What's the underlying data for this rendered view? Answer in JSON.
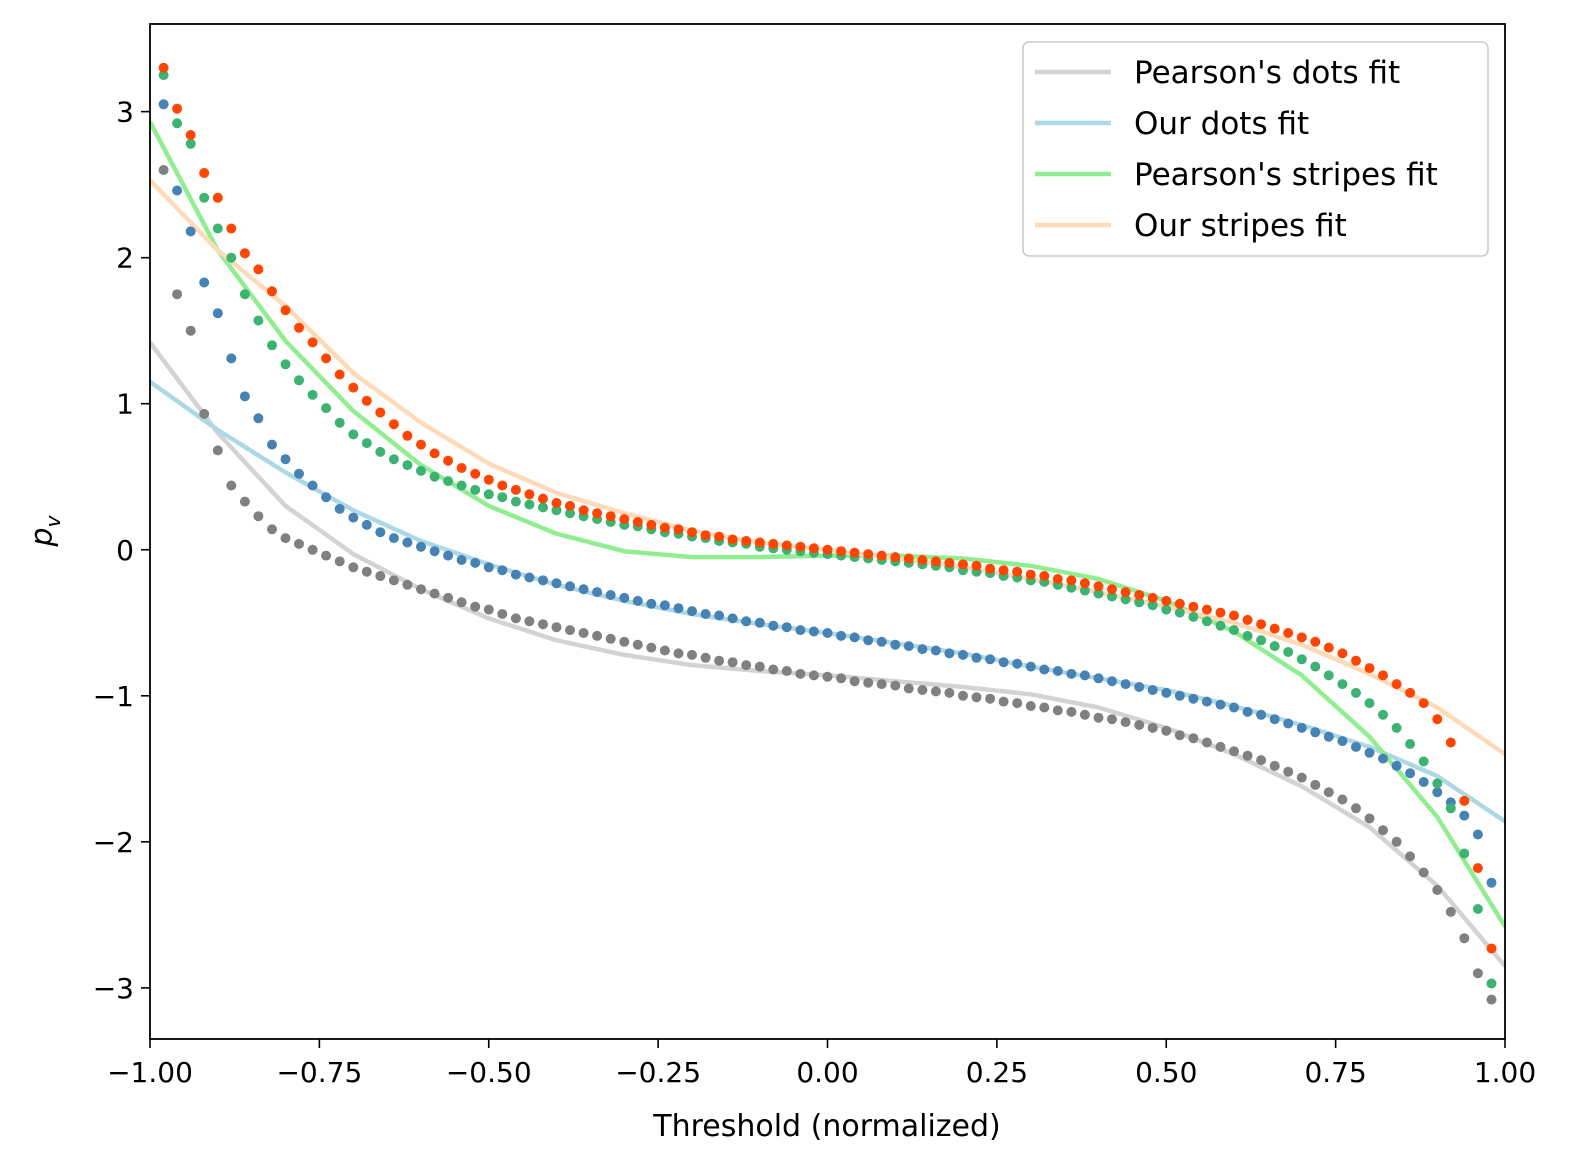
{
  "chart_data": {
    "type": "scatter",
    "xlabel": "Threshold (normalized)",
    "ylabel": "p_v",
    "ylabel_main": "p",
    "ylabel_sub": "v",
    "xlim": [
      -1.0,
      1.0
    ],
    "ylim": [
      -3.35,
      3.6
    ],
    "xticks": [
      -1.0,
      -0.75,
      -0.5,
      -0.25,
      0.0,
      0.25,
      0.5,
      0.75,
      1.0
    ],
    "xtick_labels": [
      "−1.00",
      "−0.75",
      "−0.50",
      "−0.25",
      "0.00",
      "0.25",
      "0.50",
      "0.75",
      "1.00"
    ],
    "yticks": [
      -3,
      -2,
      -1,
      0,
      1,
      2,
      3
    ],
    "ytick_labels": [
      "−3",
      "−2",
      "−1",
      "0",
      "1",
      "2",
      "3"
    ],
    "grid": false,
    "legend_position": "top-right",
    "fit_lines": [
      {
        "name": "Pearson's dots fit",
        "color": "#d3d3d3",
        "x": [
          -1.0,
          -0.9,
          -0.8,
          -0.7,
          -0.6,
          -0.5,
          -0.4,
          -0.3,
          -0.2,
          -0.1,
          0.0,
          0.1,
          0.2,
          0.3,
          0.4,
          0.5,
          0.6,
          0.7,
          0.8,
          0.9,
          1.0
        ],
        "y": [
          1.42,
          0.8,
          0.3,
          -0.03,
          -0.27,
          -0.47,
          -0.62,
          -0.72,
          -0.79,
          -0.83,
          -0.86,
          -0.9,
          -0.94,
          -0.99,
          -1.08,
          -1.22,
          -1.4,
          -1.62,
          -1.9,
          -2.3,
          -2.85
        ]
      },
      {
        "name": "Our dots fit",
        "color": "#add8e6",
        "x": [
          -1.0,
          -0.9,
          -0.8,
          -0.7,
          -0.6,
          -0.5,
          -0.4,
          -0.3,
          -0.2,
          -0.1,
          0.0,
          0.1,
          0.2,
          0.3,
          0.4,
          0.5,
          0.6,
          0.7,
          0.8,
          0.9,
          1.0
        ],
        "y": [
          1.15,
          0.82,
          0.53,
          0.27,
          0.06,
          -0.1,
          -0.24,
          -0.35,
          -0.44,
          -0.51,
          -0.57,
          -0.64,
          -0.71,
          -0.8,
          -0.88,
          -0.96,
          -1.07,
          -1.2,
          -1.35,
          -1.55,
          -1.86
        ]
      },
      {
        "name": "Pearson's stripes fit",
        "color": "#90ee90",
        "x": [
          -1.0,
          -0.9,
          -0.8,
          -0.7,
          -0.6,
          -0.5,
          -0.4,
          -0.3,
          -0.2,
          -0.1,
          0.0,
          0.1,
          0.2,
          0.3,
          0.4,
          0.5,
          0.6,
          0.7,
          0.8,
          0.9,
          1.0
        ],
        "y": [
          2.93,
          2.05,
          1.43,
          0.95,
          0.58,
          0.3,
          0.11,
          -0.01,
          -0.05,
          -0.05,
          -0.04,
          -0.04,
          -0.06,
          -0.11,
          -0.2,
          -0.35,
          -0.56,
          -0.86,
          -1.28,
          -1.83,
          -2.58
        ]
      },
      {
        "name": "Our stripes fit",
        "color": "#ffdab9",
        "x": [
          -1.0,
          -0.9,
          -0.8,
          -0.7,
          -0.6,
          -0.5,
          -0.4,
          -0.3,
          -0.2,
          -0.1,
          0.0,
          0.1,
          0.2,
          0.3,
          0.4,
          0.5,
          0.6,
          0.7,
          0.8,
          0.9,
          1.0
        ],
        "y": [
          2.53,
          2.05,
          1.67,
          1.21,
          0.87,
          0.59,
          0.39,
          0.25,
          0.13,
          0.05,
          0.0,
          -0.06,
          -0.12,
          -0.2,
          -0.29,
          -0.39,
          -0.5,
          -0.65,
          -0.85,
          -1.08,
          -1.4
        ]
      }
    ],
    "dot_series": [
      {
        "color": "#808080",
        "x": [
          -0.98,
          -0.96,
          -0.94,
          -0.92,
          -0.9,
          -0.88,
          -0.86,
          -0.84,
          -0.82,
          -0.8,
          -0.78,
          -0.76,
          -0.74,
          -0.72,
          -0.7,
          -0.68,
          -0.66,
          -0.64,
          -0.62,
          -0.6,
          -0.58,
          -0.56,
          -0.54,
          -0.52,
          -0.5,
          -0.48,
          -0.46,
          -0.44,
          -0.42,
          -0.4,
          -0.38,
          -0.36,
          -0.34,
          -0.32,
          -0.3,
          -0.28,
          -0.26,
          -0.24,
          -0.22,
          -0.2,
          -0.18,
          -0.16,
          -0.14,
          -0.12,
          -0.1,
          -0.08,
          -0.06,
          -0.04,
          -0.02,
          0.0,
          0.02,
          0.04,
          0.06,
          0.08,
          0.1,
          0.12,
          0.14,
          0.16,
          0.18,
          0.2,
          0.22,
          0.24,
          0.26,
          0.28,
          0.3,
          0.32,
          0.34,
          0.36,
          0.38,
          0.4,
          0.42,
          0.44,
          0.46,
          0.48,
          0.5,
          0.52,
          0.54,
          0.56,
          0.58,
          0.6,
          0.62,
          0.64,
          0.66,
          0.68,
          0.7,
          0.72,
          0.74,
          0.76,
          0.78,
          0.8,
          0.82,
          0.84,
          0.86,
          0.88,
          0.9,
          0.92,
          0.94,
          0.96,
          0.98
        ],
        "y": [
          2.6,
          1.75,
          1.5,
          0.93,
          0.68,
          0.44,
          0.33,
          0.23,
          0.14,
          0.08,
          0.04,
          0.0,
          -0.04,
          -0.08,
          -0.12,
          -0.15,
          -0.18,
          -0.21,
          -0.24,
          -0.27,
          -0.3,
          -0.33,
          -0.36,
          -0.39,
          -0.41,
          -0.44,
          -0.47,
          -0.49,
          -0.51,
          -0.53,
          -0.55,
          -0.57,
          -0.59,
          -0.61,
          -0.63,
          -0.65,
          -0.67,
          -0.69,
          -0.71,
          -0.72,
          -0.74,
          -0.76,
          -0.77,
          -0.79,
          -0.8,
          -0.82,
          -0.83,
          -0.85,
          -0.86,
          -0.87,
          -0.88,
          -0.9,
          -0.91,
          -0.92,
          -0.93,
          -0.95,
          -0.96,
          -0.97,
          -0.98,
          -1.0,
          -1.01,
          -1.02,
          -1.04,
          -1.05,
          -1.07,
          -1.08,
          -1.1,
          -1.11,
          -1.13,
          -1.15,
          -1.16,
          -1.18,
          -1.2,
          -1.22,
          -1.24,
          -1.27,
          -1.29,
          -1.32,
          -1.35,
          -1.38,
          -1.41,
          -1.44,
          -1.48,
          -1.52,
          -1.56,
          -1.61,
          -1.66,
          -1.71,
          -1.77,
          -1.84,
          -1.92,
          -2.0,
          -2.1,
          -2.21,
          -2.33,
          -2.48,
          -2.66,
          -2.9,
          -3.08
        ]
      },
      {
        "color": "#4682b4",
        "x": [
          -0.98,
          -0.96,
          -0.94,
          -0.92,
          -0.9,
          -0.88,
          -0.86,
          -0.84,
          -0.82,
          -0.8,
          -0.78,
          -0.76,
          -0.74,
          -0.72,
          -0.7,
          -0.68,
          -0.66,
          -0.64,
          -0.62,
          -0.6,
          -0.58,
          -0.56,
          -0.54,
          -0.52,
          -0.5,
          -0.48,
          -0.46,
          -0.44,
          -0.42,
          -0.4,
          -0.38,
          -0.36,
          -0.34,
          -0.32,
          -0.3,
          -0.28,
          -0.26,
          -0.24,
          -0.22,
          -0.2,
          -0.18,
          -0.16,
          -0.14,
          -0.12,
          -0.1,
          -0.08,
          -0.06,
          -0.04,
          -0.02,
          0.0,
          0.02,
          0.04,
          0.06,
          0.08,
          0.1,
          0.12,
          0.14,
          0.16,
          0.18,
          0.2,
          0.22,
          0.24,
          0.26,
          0.28,
          0.3,
          0.32,
          0.34,
          0.36,
          0.38,
          0.4,
          0.42,
          0.44,
          0.46,
          0.48,
          0.5,
          0.52,
          0.54,
          0.56,
          0.58,
          0.6,
          0.62,
          0.64,
          0.66,
          0.68,
          0.7,
          0.72,
          0.74,
          0.76,
          0.78,
          0.8,
          0.82,
          0.84,
          0.86,
          0.88,
          0.9,
          0.92,
          0.94,
          0.96,
          0.98
        ],
        "y": [
          3.05,
          2.46,
          2.18,
          1.83,
          1.62,
          1.31,
          1.05,
          0.9,
          0.72,
          0.62,
          0.52,
          0.44,
          0.36,
          0.28,
          0.22,
          0.17,
          0.12,
          0.08,
          0.05,
          0.02,
          -0.01,
          -0.04,
          -0.07,
          -0.09,
          -0.12,
          -0.14,
          -0.17,
          -0.19,
          -0.21,
          -0.23,
          -0.25,
          -0.27,
          -0.29,
          -0.31,
          -0.33,
          -0.35,
          -0.37,
          -0.38,
          -0.4,
          -0.42,
          -0.44,
          -0.45,
          -0.47,
          -0.49,
          -0.5,
          -0.52,
          -0.53,
          -0.55,
          -0.56,
          -0.57,
          -0.59,
          -0.6,
          -0.62,
          -0.63,
          -0.65,
          -0.66,
          -0.68,
          -0.69,
          -0.71,
          -0.72,
          -0.74,
          -0.75,
          -0.77,
          -0.78,
          -0.8,
          -0.82,
          -0.83,
          -0.85,
          -0.86,
          -0.88,
          -0.9,
          -0.92,
          -0.94,
          -0.96,
          -0.98,
          -1.0,
          -1.02,
          -1.04,
          -1.06,
          -1.08,
          -1.11,
          -1.13,
          -1.16,
          -1.19,
          -1.22,
          -1.25,
          -1.28,
          -1.31,
          -1.35,
          -1.39,
          -1.43,
          -1.48,
          -1.53,
          -1.59,
          -1.66,
          -1.73,
          -1.82,
          -1.95,
          -2.28
        ]
      },
      {
        "color": "#3cb371",
        "x": [
          -0.98,
          -0.96,
          -0.94,
          -0.92,
          -0.9,
          -0.88,
          -0.86,
          -0.84,
          -0.82,
          -0.8,
          -0.78,
          -0.76,
          -0.74,
          -0.72,
          -0.7,
          -0.68,
          -0.66,
          -0.64,
          -0.62,
          -0.6,
          -0.58,
          -0.56,
          -0.54,
          -0.52,
          -0.5,
          -0.48,
          -0.46,
          -0.44,
          -0.42,
          -0.4,
          -0.38,
          -0.36,
          -0.34,
          -0.32,
          -0.3,
          -0.28,
          -0.26,
          -0.24,
          -0.22,
          -0.2,
          -0.18,
          -0.16,
          -0.14,
          -0.12,
          -0.1,
          -0.08,
          -0.06,
          -0.04,
          -0.02,
          0.0,
          0.02,
          0.04,
          0.06,
          0.08,
          0.1,
          0.12,
          0.14,
          0.16,
          0.18,
          0.2,
          0.22,
          0.24,
          0.26,
          0.28,
          0.3,
          0.32,
          0.34,
          0.36,
          0.38,
          0.4,
          0.42,
          0.44,
          0.46,
          0.48,
          0.5,
          0.52,
          0.54,
          0.56,
          0.58,
          0.6,
          0.62,
          0.64,
          0.66,
          0.68,
          0.7,
          0.72,
          0.74,
          0.76,
          0.78,
          0.8,
          0.82,
          0.84,
          0.86,
          0.88,
          0.9,
          0.92,
          0.94,
          0.96,
          0.98
        ],
        "y": [
          3.25,
          2.92,
          2.78,
          2.41,
          2.2,
          2.0,
          1.75,
          1.57,
          1.4,
          1.27,
          1.16,
          1.06,
          0.97,
          0.87,
          0.79,
          0.73,
          0.67,
          0.62,
          0.58,
          0.54,
          0.5,
          0.47,
          0.44,
          0.41,
          0.38,
          0.36,
          0.33,
          0.31,
          0.29,
          0.27,
          0.25,
          0.23,
          0.21,
          0.19,
          0.17,
          0.16,
          0.14,
          0.12,
          0.11,
          0.09,
          0.08,
          0.06,
          0.05,
          0.04,
          0.02,
          0.01,
          0.0,
          -0.01,
          -0.02,
          -0.03,
          -0.04,
          -0.05,
          -0.06,
          -0.07,
          -0.08,
          -0.09,
          -0.1,
          -0.11,
          -0.12,
          -0.14,
          -0.15,
          -0.16,
          -0.18,
          -0.19,
          -0.21,
          -0.22,
          -0.24,
          -0.26,
          -0.28,
          -0.3,
          -0.32,
          -0.34,
          -0.36,
          -0.38,
          -0.41,
          -0.43,
          -0.46,
          -0.49,
          -0.52,
          -0.55,
          -0.59,
          -0.62,
          -0.66,
          -0.7,
          -0.75,
          -0.8,
          -0.86,
          -0.92,
          -0.98,
          -1.05,
          -1.13,
          -1.22,
          -1.33,
          -1.45,
          -1.6,
          -1.77,
          -2.08,
          -2.46,
          -2.97
        ]
      },
      {
        "color": "#ff4500",
        "x": [
          -0.98,
          -0.96,
          -0.94,
          -0.92,
          -0.9,
          -0.88,
          -0.86,
          -0.84,
          -0.82,
          -0.8,
          -0.78,
          -0.76,
          -0.74,
          -0.72,
          -0.7,
          -0.68,
          -0.66,
          -0.64,
          -0.62,
          -0.6,
          -0.58,
          -0.56,
          -0.54,
          -0.52,
          -0.5,
          -0.48,
          -0.46,
          -0.44,
          -0.42,
          -0.4,
          -0.38,
          -0.36,
          -0.34,
          -0.32,
          -0.3,
          -0.28,
          -0.26,
          -0.24,
          -0.22,
          -0.2,
          -0.18,
          -0.16,
          -0.14,
          -0.12,
          -0.1,
          -0.08,
          -0.06,
          -0.04,
          -0.02,
          0.0,
          0.02,
          0.04,
          0.06,
          0.08,
          0.1,
          0.12,
          0.14,
          0.16,
          0.18,
          0.2,
          0.22,
          0.24,
          0.26,
          0.28,
          0.3,
          0.32,
          0.34,
          0.36,
          0.38,
          0.4,
          0.42,
          0.44,
          0.46,
          0.48,
          0.5,
          0.52,
          0.54,
          0.56,
          0.58,
          0.6,
          0.62,
          0.64,
          0.66,
          0.68,
          0.7,
          0.72,
          0.74,
          0.76,
          0.78,
          0.8,
          0.82,
          0.84,
          0.86,
          0.88,
          0.9,
          0.92,
          0.94,
          0.96,
          0.98
        ],
        "y": [
          3.3,
          3.02,
          2.84,
          2.58,
          2.41,
          2.2,
          2.03,
          1.92,
          1.77,
          1.64,
          1.52,
          1.42,
          1.31,
          1.2,
          1.11,
          1.02,
          0.94,
          0.86,
          0.78,
          0.72,
          0.66,
          0.61,
          0.56,
          0.52,
          0.48,
          0.44,
          0.41,
          0.38,
          0.35,
          0.32,
          0.3,
          0.27,
          0.25,
          0.23,
          0.21,
          0.19,
          0.17,
          0.15,
          0.14,
          0.12,
          0.1,
          0.09,
          0.07,
          0.06,
          0.05,
          0.04,
          0.03,
          0.02,
          0.01,
          0.0,
          -0.01,
          -0.02,
          -0.03,
          -0.04,
          -0.05,
          -0.06,
          -0.07,
          -0.08,
          -0.09,
          -0.1,
          -0.11,
          -0.13,
          -0.14,
          -0.15,
          -0.17,
          -0.18,
          -0.2,
          -0.21,
          -0.23,
          -0.25,
          -0.27,
          -0.29,
          -0.31,
          -0.33,
          -0.35,
          -0.37,
          -0.39,
          -0.41,
          -0.43,
          -0.45,
          -0.48,
          -0.51,
          -0.54,
          -0.57,
          -0.6,
          -0.63,
          -0.67,
          -0.71,
          -0.76,
          -0.81,
          -0.86,
          -0.92,
          -0.98,
          -1.05,
          -1.16,
          -1.32,
          -1.72,
          -2.18,
          -2.73
        ]
      }
    ]
  }
}
